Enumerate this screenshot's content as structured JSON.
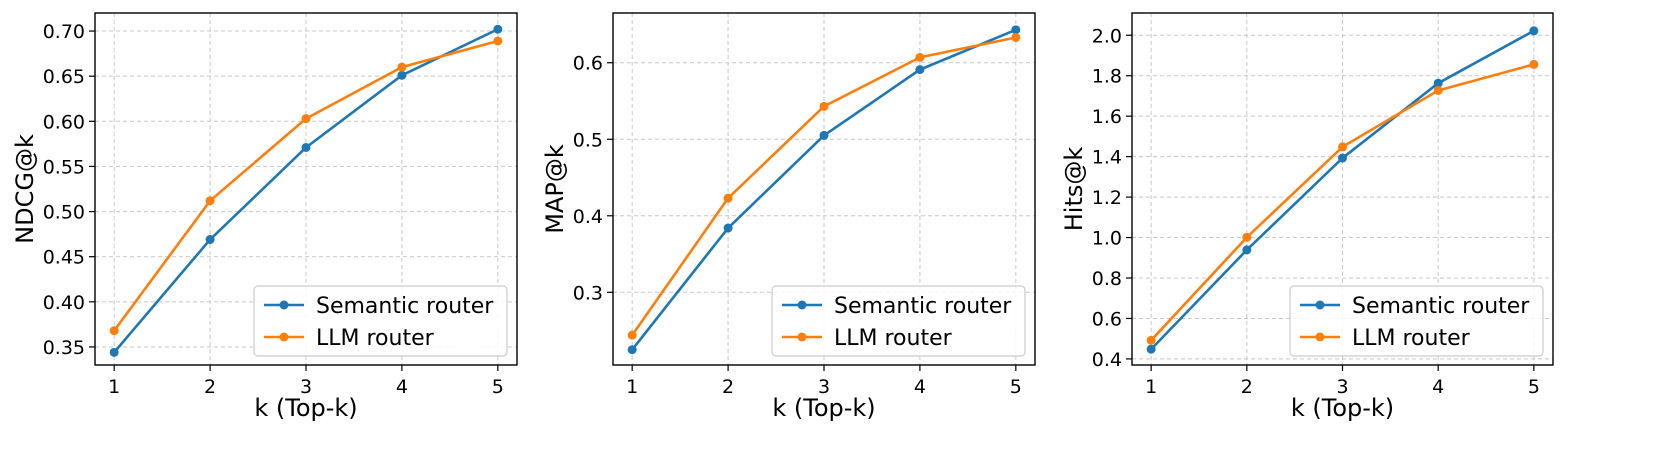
{
  "colors": {
    "series0": "#1f77b4",
    "series1": "#ff7f0e"
  },
  "chart_data": [
    {
      "type": "line",
      "title": "",
      "xlabel": "k (Top-k)",
      "ylabel": "NDCG@k",
      "x": [
        1,
        2,
        3,
        4,
        5
      ],
      "xlim": [
        0.8,
        5.2
      ],
      "ylim": [
        0.33,
        0.72
      ],
      "yticks": [
        0.35,
        0.4,
        0.45,
        0.5,
        0.55,
        0.6,
        0.65,
        0.7
      ],
      "ytick_labels": [
        "0.35",
        "0.40",
        "0.45",
        "0.50",
        "0.55",
        "0.60",
        "0.65",
        "0.70"
      ],
      "grid": true,
      "legend": "lower-right",
      "series": [
        {
          "name": "Semantic router",
          "values": [
            0.344,
            0.469,
            0.571,
            0.651,
            0.702
          ]
        },
        {
          "name": "LLM router",
          "values": [
            0.368,
            0.512,
            0.603,
            0.66,
            0.689
          ]
        }
      ]
    },
    {
      "type": "line",
      "title": "",
      "xlabel": "k (Top-k)",
      "ylabel": "MAP@k",
      "x": [
        1,
        2,
        3,
        4,
        5
      ],
      "xlim": [
        0.8,
        5.2
      ],
      "ylim": [
        0.205,
        0.665
      ],
      "yticks": [
        0.3,
        0.4,
        0.5,
        0.6
      ],
      "ytick_labels": [
        "0.3",
        "0.4",
        "0.5",
        "0.6"
      ],
      "grid": true,
      "legend": "lower-right",
      "series": [
        {
          "name": "Semantic router",
          "values": [
            0.225,
            0.384,
            0.505,
            0.591,
            0.643
          ]
        },
        {
          "name": "LLM router",
          "values": [
            0.244,
            0.423,
            0.543,
            0.607,
            0.633
          ]
        }
      ]
    },
    {
      "type": "line",
      "title": "",
      "xlabel": "k (Top-k)",
      "ylabel": "Hits@k",
      "x": [
        1,
        2,
        3,
        4,
        5
      ],
      "xlim": [
        0.8,
        5.2
      ],
      "ylim": [
        0.37,
        2.11
      ],
      "yticks": [
        0.4,
        0.6,
        0.8,
        1.0,
        1.2,
        1.4,
        1.6,
        1.8,
        2.0
      ],
      "ytick_labels": [
        "0.4",
        "0.6",
        "0.8",
        "1.0",
        "1.2",
        "1.4",
        "1.6",
        "1.8",
        "2.0"
      ],
      "grid": true,
      "legend": "lower-right",
      "series": [
        {
          "name": "Semantic router",
          "values": [
            0.448,
            0.939,
            1.393,
            1.763,
            2.022
          ]
        },
        {
          "name": "LLM router",
          "values": [
            0.492,
            1.001,
            1.448,
            1.727,
            1.856
          ]
        }
      ]
    }
  ]
}
